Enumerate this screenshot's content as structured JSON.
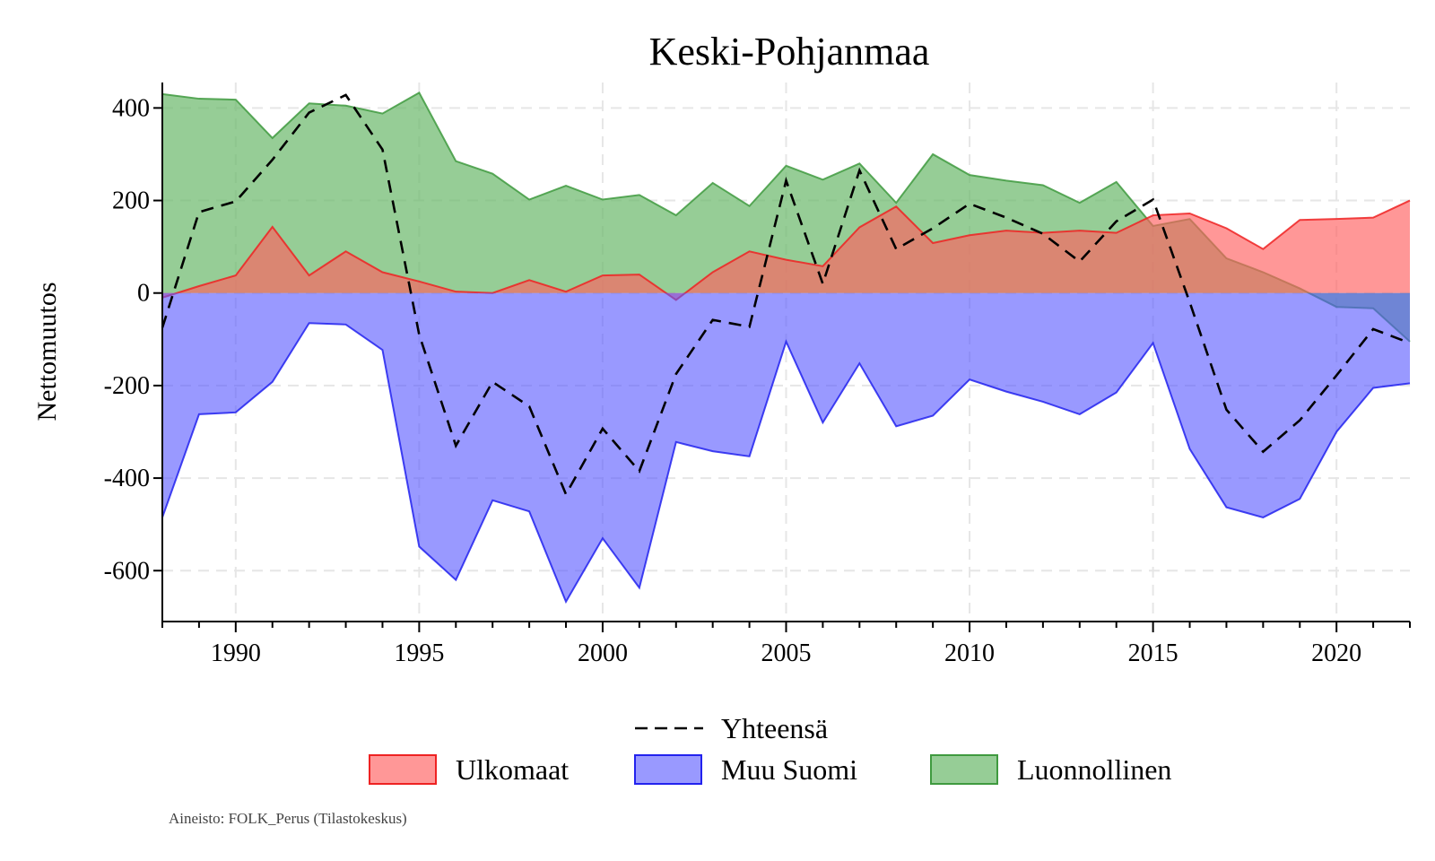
{
  "chart_data": {
    "type": "area",
    "title": "Keski-Pohjanmaa",
    "xlabel": "",
    "ylabel": "Nettomuutos",
    "xlim": [
      1988,
      2022
    ],
    "ylim": [
      -710,
      455
    ],
    "x_ticks": [
      1990,
      1995,
      2000,
      2005,
      2010,
      2015,
      2020
    ],
    "y_ticks": [
      400,
      200,
      0,
      -200,
      -400,
      -600
    ],
    "y_tick_labels": [
      "400",
      "200",
      "0",
      "-200",
      "-400",
      "-600"
    ],
    "grid": true,
    "legend_position": "bottom",
    "x": [
      1988,
      1989,
      1990,
      1991,
      1992,
      1993,
      1994,
      1995,
      1996,
      1997,
      1998,
      1999,
      2000,
      2001,
      2002,
      2003,
      2004,
      2005,
      2006,
      2007,
      2008,
      2009,
      2010,
      2011,
      2012,
      2013,
      2014,
      2015,
      2016,
      2017,
      2018,
      2019,
      2020,
      2021,
      2022
    ],
    "series": [
      {
        "name": "Luonnollinen",
        "kind": "area",
        "color": "#6ab86a",
        "values": [
          430,
          420,
          418,
          335,
          410,
          405,
          388,
          433,
          285,
          258,
          202,
          232,
          202,
          212,
          168,
          238,
          188,
          275,
          245,
          280,
          195,
          300,
          255,
          243,
          233,
          195,
          240,
          145,
          160,
          75,
          45,
          10,
          -30,
          -33,
          -105
        ]
      },
      {
        "name": "Ulkomaat",
        "kind": "area",
        "color": "#ff6060",
        "values": [
          -10,
          15,
          38,
          143,
          38,
          90,
          45,
          25,
          3,
          0,
          28,
          3,
          38,
          40,
          -15,
          45,
          90,
          72,
          58,
          142,
          187,
          108,
          125,
          135,
          130,
          135,
          130,
          168,
          172,
          140,
          95,
          158,
          160,
          163,
          200
        ]
      },
      {
        "name": "Muu Suomi",
        "kind": "area",
        "color": "#5555ff",
        "values": [
          -485,
          -262,
          -258,
          -192,
          -65,
          -68,
          -123,
          -548,
          -620,
          -448,
          -472,
          -667,
          -530,
          -637,
          -322,
          -342,
          -353,
          -105,
          -280,
          -152,
          -288,
          -265,
          -187,
          -213,
          -235,
          -262,
          -215,
          -108,
          -337,
          -463,
          -485,
          -445,
          -300,
          -205,
          -195
        ]
      },
      {
        "name": "Yhteensä",
        "kind": "line",
        "style": "dashed",
        "color": "#000000",
        "values": [
          -75,
          175,
          198,
          288,
          390,
          428,
          310,
          -90,
          -330,
          -192,
          -245,
          -435,
          -293,
          -385,
          -175,
          -58,
          -73,
          243,
          20,
          265,
          95,
          140,
          193,
          163,
          128,
          68,
          155,
          202,
          -20,
          -252,
          -343,
          -275,
          -178,
          -78,
          -108
        ]
      }
    ]
  },
  "legend": {
    "total_label": "Yhteensä",
    "ulkomaat_label": "Ulkomaat",
    "muu_suomi_label": "Muu Suomi",
    "luonnollinen_label": "Luonnollinen"
  },
  "source_note": "Aineisto: FOLK_Perus (Tilastokeskus)",
  "colors": {
    "luonnollinen_fill": "#6ab86a",
    "ulkomaat_fill": "#ff6060",
    "muu_suomi_fill": "#5555ff",
    "grid": "#e6e6e6"
  }
}
